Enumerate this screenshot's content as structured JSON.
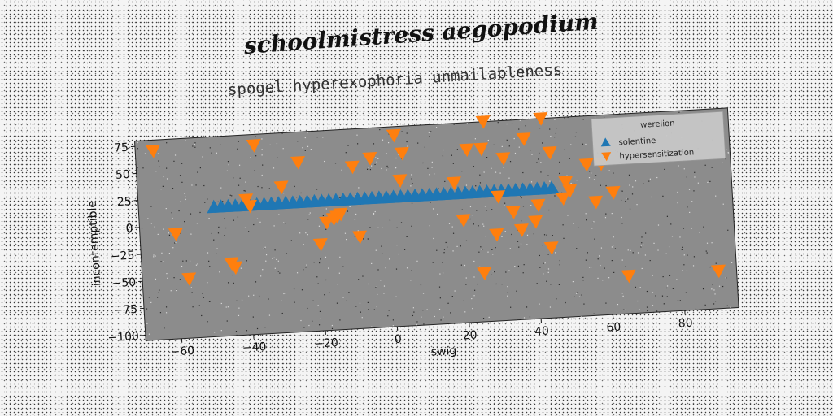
{
  "suptitle": "schoolmistress aegopodium",
  "chart_data": {
    "type": "scatter",
    "title": "spogel hyperexophoria unmailableness",
    "xlabel": "swig",
    "ylabel": "incontemptible",
    "xlim": [
      -70,
      95
    ],
    "ylim": [
      -105,
      80
    ],
    "xticks": [
      -60,
      -40,
      -20,
      0,
      20,
      40,
      60,
      80
    ],
    "yticks": [
      75,
      50,
      25,
      0,
      -25,
      -50,
      -75,
      -100
    ],
    "grid": false,
    "legend": {
      "title": "werelion",
      "placement": "top-right",
      "entries": [
        "solentine",
        "hypersensitization"
      ]
    },
    "series": [
      {
        "name": "solentine",
        "marker": "triangle-up",
        "color": "#1f77b4",
        "x": [
          -49,
          -47,
          -45,
          -43,
          -41,
          -39,
          -37,
          -35,
          -33,
          -31,
          -29,
          -27,
          -25,
          -23,
          -21,
          -19,
          -17,
          -15,
          -13,
          -11,
          -9,
          -7,
          -5,
          -3,
          -1,
          1,
          3,
          5,
          7,
          9,
          11,
          13,
          15,
          17,
          19,
          21,
          23,
          25,
          27,
          29,
          31,
          33,
          35,
          37,
          39,
          41,
          43,
          45
        ],
        "y": [
          15,
          15,
          15,
          15,
          15,
          15,
          15,
          15,
          15,
          15,
          15,
          15,
          15,
          15,
          15,
          15,
          15,
          15,
          15,
          15,
          15,
          15,
          15,
          15,
          15,
          15,
          15,
          15,
          15,
          15,
          15,
          15,
          15,
          15,
          15,
          15,
          15,
          15,
          15,
          15,
          15,
          15,
          15,
          15,
          15,
          15,
          15,
          15
        ]
      },
      {
        "name": "hypersensitization",
        "marker": "triangle-down",
        "color": "#ff7f0e",
        "x": [
          -65,
          -60,
          -57,
          -45,
          -44,
          -40,
          -39,
          -37,
          -30,
          -25,
          -20,
          -18,
          -16,
          -15,
          -14,
          -10,
          -9,
          -5,
          2,
          3,
          4,
          18,
          20,
          22,
          25,
          26,
          27,
          29,
          30,
          32,
          34,
          36,
          38,
          40,
          41,
          43,
          44,
          45,
          48,
          49,
          50,
          55,
          57,
          59,
          62,
          65,
          90
        ],
        "y": [
          70,
          -8,
          -50,
          -38,
          -42,
          20,
          14,
          70,
          30,
          52,
          -25,
          -5,
          -2,
          0,
          2,
          45,
          -20,
          52,
          72,
          30,
          55,
          25,
          -10,
          55,
          -60,
          55,
          80,
          -25,
          10,
          45,
          -5,
          -22,
          62,
          -15,
          0,
          80,
          -40,
          48,
          5,
          20,
          12,
          35,
          0,
          35,
          8,
          -70,
          -70
        ]
      }
    ]
  }
}
